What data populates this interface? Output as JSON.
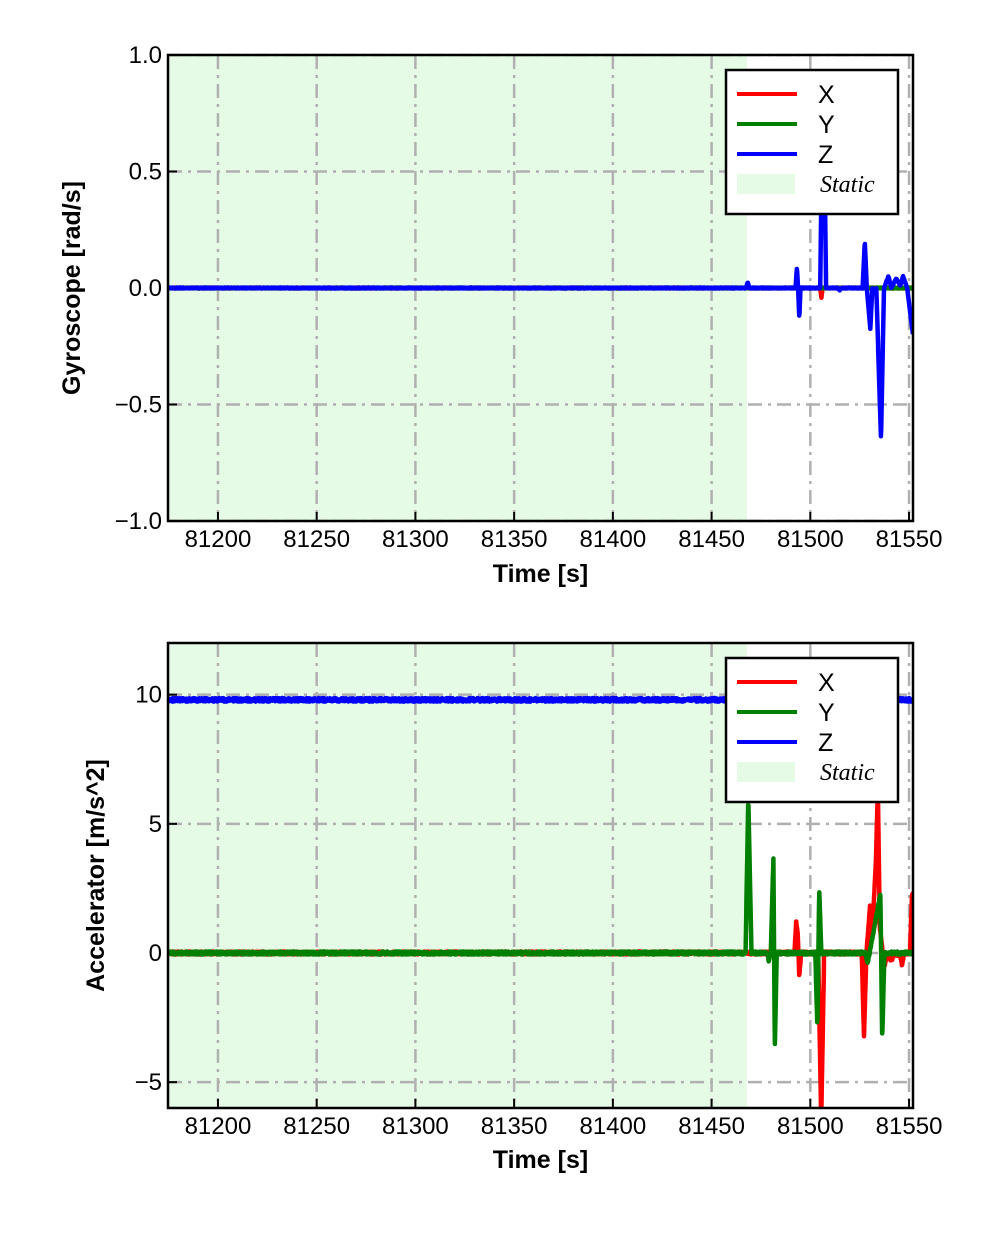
{
  "colors": {
    "X": "#ff0000",
    "Y": "#008000",
    "Z": "#0000ff",
    "static": "#e6fbe6",
    "grid": "#b0b0b0"
  },
  "chart_data": [
    {
      "type": "line",
      "id": "gyro",
      "xlabel": "Time [s]",
      "ylabel": "Gyroscope [rad/s]",
      "xlim": [
        81174.7,
        81552
      ],
      "ylim": [
        -1.0,
        1.0
      ],
      "xticks": [
        81200,
        81250,
        81300,
        81350,
        81400,
        81450,
        81500,
        81550
      ],
      "xtick_labels": [
        "81200",
        "81250",
        "81300",
        "81350",
        "81400",
        "81450",
        "81500",
        "81550"
      ],
      "yticks": [
        -1.0,
        -0.5,
        0.0,
        0.5,
        1.0
      ],
      "ytick_labels": [
        "−1.0",
        "−0.5",
        "0.0",
        "0.5",
        "1.0"
      ],
      "grid": true,
      "legend": {
        "placement": "top-right",
        "entries": [
          "X",
          "Y",
          "Z",
          "Static"
        ]
      },
      "static_span": [
        81174.7,
        81468
      ],
      "series": [
        {
          "name": "X",
          "noise": 0.002,
          "points": [
            [
              81174.7,
              0
            ],
            [
              81505,
              0
            ],
            [
              81505.6,
              -0.04
            ],
            [
              81506.2,
              0
            ],
            [
              81552,
              0
            ]
          ]
        },
        {
          "name": "Y",
          "noise": 0.002,
          "points": [
            [
              81174.7,
              0
            ],
            [
              81552,
              0
            ]
          ]
        },
        {
          "name": "Z",
          "noise": 0.002,
          "points": [
            [
              81174.7,
              0
            ],
            [
              81467.5,
              0
            ],
            [
              81468.3,
              0.025
            ],
            [
              81469.2,
              0
            ],
            [
              81492.5,
              0
            ],
            [
              81493.2,
              0.09
            ],
            [
              81493.8,
              0
            ],
            [
              81494.4,
              -0.13
            ],
            [
              81495,
              0
            ],
            [
              81505,
              0
            ],
            [
              81505.8,
              0.55
            ],
            [
              81507.2,
              0.55
            ],
            [
              81508,
              0
            ],
            [
              81514,
              0
            ],
            [
              81514.8,
              -0.01
            ],
            [
              81515.6,
              0
            ],
            [
              81526.5,
              0
            ],
            [
              81527.6,
              0.2
            ],
            [
              81528.6,
              0
            ],
            [
              81530.4,
              -0.18
            ],
            [
              81531.4,
              0
            ],
            [
              81532.5,
              -0.02
            ],
            [
              81533.4,
              0
            ],
            [
              81535.8,
              -0.65
            ],
            [
              81537.3,
              0
            ],
            [
              81539.6,
              0.05
            ],
            [
              81541,
              0
            ],
            [
              81543.5,
              0.04
            ],
            [
              81545.5,
              0.01
            ],
            [
              81547,
              0.05
            ],
            [
              81549,
              0
            ],
            [
              81552,
              -0.2
            ]
          ]
        }
      ]
    },
    {
      "type": "line",
      "id": "accel",
      "xlabel": "Time [s]",
      "ylabel": "Accelerator [m/s^2]",
      "xlim": [
        81174.7,
        81552
      ],
      "ylim": [
        -6,
        12
      ],
      "xticks": [
        81200,
        81250,
        81300,
        81350,
        81400,
        81450,
        81500,
        81550
      ],
      "xtick_labels": [
        "81200",
        "81250",
        "81300",
        "81350",
        "81400",
        "81450",
        "81500",
        "81550"
      ],
      "yticks": [
        -5,
        0,
        5,
        10
      ],
      "ytick_labels": [
        "−5",
        "0",
        "5",
        "10"
      ],
      "grid": true,
      "legend": {
        "placement": "top-right",
        "entries": [
          "X",
          "Y",
          "Z",
          "Static"
        ]
      },
      "static_span": [
        81174.7,
        81468
      ],
      "series": [
        {
          "name": "X",
          "noise": 0.06,
          "points": [
            [
              81174.7,
              0
            ],
            [
              81492,
              0
            ],
            [
              81492.8,
              1.2
            ],
            [
              81493.6,
              0.8
            ],
            [
              81494.4,
              -0.9
            ],
            [
              81495.4,
              0
            ],
            [
              81504,
              0
            ],
            [
              81505.5,
              -6.5
            ],
            [
              81507,
              0
            ],
            [
              81526,
              0
            ],
            [
              81527.2,
              -3.2
            ],
            [
              81528.4,
              0
            ],
            [
              81530.2,
              1.8
            ],
            [
              81531.2,
              0.5
            ],
            [
              81533.2,
              3.5
            ],
            [
              81534.2,
              6.5
            ],
            [
              81535.2,
              1
            ],
            [
              81537.5,
              -0.5
            ],
            [
              81539,
              0
            ],
            [
              81541,
              -0.3
            ],
            [
              81542.5,
              0
            ],
            [
              81545.5,
              -0.1
            ],
            [
              81546.5,
              -0.5
            ],
            [
              81547.5,
              0
            ],
            [
              81550.5,
              0
            ],
            [
              81551.5,
              2.3
            ],
            [
              81552,
              2.3
            ]
          ]
        },
        {
          "name": "Y",
          "noise": 0.06,
          "points": [
            [
              81174.7,
              0
            ],
            [
              81467.2,
              0
            ],
            [
              81468.6,
              6.0
            ],
            [
              81470.2,
              0
            ],
            [
              81478,
              0
            ],
            [
              81479,
              -0.3
            ],
            [
              81480,
              0
            ],
            [
              81481.3,
              3.7
            ],
            [
              81482,
              -3.7
            ],
            [
              81483,
              0
            ],
            [
              81502.5,
              0
            ],
            [
              81503.6,
              -2.9
            ],
            [
              81504.5,
              2.5
            ],
            [
              81505.6,
              0
            ],
            [
              81528,
              0
            ],
            [
              81529,
              -0.4
            ],
            [
              81530,
              0
            ],
            [
              81535.5,
              2.3
            ],
            [
              81536.4,
              -3.4
            ],
            [
              81537.5,
              0
            ],
            [
              81552,
              0
            ]
          ]
        },
        {
          "name": "Z",
          "noise": 0.07,
          "points": [
            [
              81174.7,
              9.8
            ],
            [
              81552,
              9.8
            ]
          ]
        }
      ]
    }
  ]
}
